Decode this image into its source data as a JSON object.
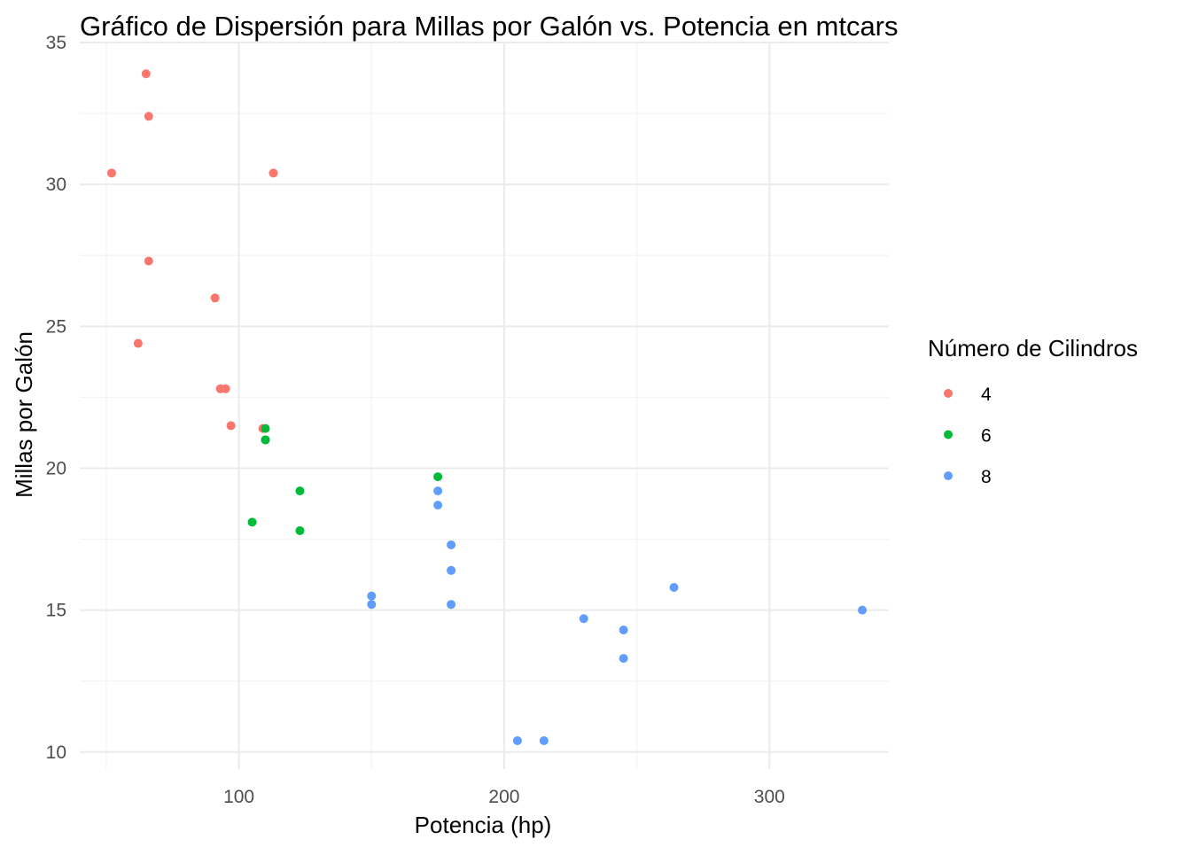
{
  "chart_data": {
    "type": "scatter",
    "title": "Gráfico de Dispersión para Millas por Galón vs. Potencia en mtcars",
    "xlabel": "Potencia (hp)",
    "ylabel": "Millas por Galón",
    "xlim": [
      40,
      345
    ],
    "ylim": [
      9.4,
      35
    ],
    "x_ticks": [
      100,
      200,
      300
    ],
    "y_ticks": [
      10,
      15,
      20,
      25,
      30,
      35
    ],
    "grid": true,
    "legend": {
      "title": "Número de Cilindros",
      "placement": "right"
    },
    "series": [
      {
        "name": "4",
        "color": "#F8766D",
        "points": [
          {
            "x": 93,
            "y": 22.8
          },
          {
            "x": 62,
            "y": 24.4
          },
          {
            "x": 95,
            "y": 22.8
          },
          {
            "x": 66,
            "y": 32.4
          },
          {
            "x": 52,
            "y": 30.4
          },
          {
            "x": 65,
            "y": 33.9
          },
          {
            "x": 97,
            "y": 21.5
          },
          {
            "x": 66,
            "y": 27.3
          },
          {
            "x": 91,
            "y": 26.0
          },
          {
            "x": 113,
            "y": 30.4
          },
          {
            "x": 109,
            "y": 21.4
          }
        ]
      },
      {
        "name": "6",
        "color": "#00BA38",
        "points": [
          {
            "x": 110,
            "y": 21.0
          },
          {
            "x": 110,
            "y": 21.0
          },
          {
            "x": 110,
            "y": 21.4
          },
          {
            "x": 105,
            "y": 18.1
          },
          {
            "x": 123,
            "y": 19.2
          },
          {
            "x": 123,
            "y": 17.8
          },
          {
            "x": 175,
            "y": 19.7
          }
        ]
      },
      {
        "name": "8",
        "color": "#619CFF",
        "points": [
          {
            "x": 175,
            "y": 18.7
          },
          {
            "x": 245,
            "y": 14.3
          },
          {
            "x": 180,
            "y": 16.4
          },
          {
            "x": 180,
            "y": 17.3
          },
          {
            "x": 180,
            "y": 15.2
          },
          {
            "x": 205,
            "y": 10.4
          },
          {
            "x": 215,
            "y": 10.4
          },
          {
            "x": 230,
            "y": 14.7
          },
          {
            "x": 150,
            "y": 15.5
          },
          {
            "x": 150,
            "y": 15.2
          },
          {
            "x": 245,
            "y": 13.3
          },
          {
            "x": 175,
            "y": 19.2
          },
          {
            "x": 264,
            "y": 15.8
          },
          {
            "x": 335,
            "y": 15.0
          }
        ]
      }
    ]
  }
}
